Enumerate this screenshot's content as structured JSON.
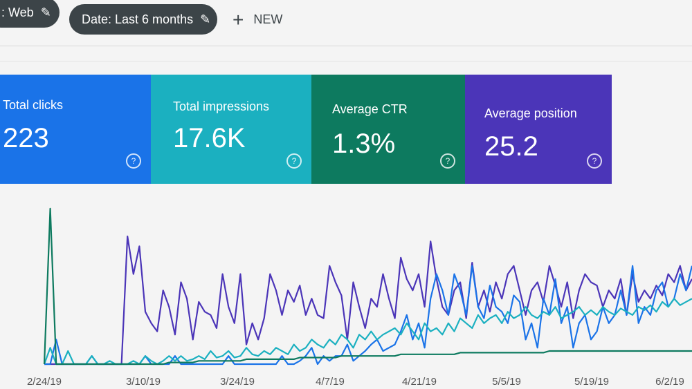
{
  "toolbar": {
    "chip_web": ": Web",
    "chip_date": "Date: Last 6 months",
    "new_label": "NEW"
  },
  "cards": [
    {
      "label": "Total clicks",
      "value": "223",
      "color": "#1a73e8"
    },
    {
      "label": "Total impressions",
      "value": "17.6K",
      "color": "#1bb0c0"
    },
    {
      "label": "Average CTR",
      "value": "1.3%",
      "color": "#0d7a5f"
    },
    {
      "label": "Average position",
      "value": "25.2",
      "color": "#4b35b8"
    }
  ],
  "chart_data": {
    "type": "line",
    "x_ticks": [
      "2/24/19",
      "3/10/19",
      "3/24/19",
      "4/7/19",
      "4/21/19",
      "5/5/19",
      "5/19/19",
      "6/2/19"
    ],
    "series": [
      {
        "color": "#4b35b8",
        "values": [
          0,
          0,
          0,
          0,
          0,
          0,
          0,
          0,
          0,
          0,
          0,
          0,
          0,
          0,
          0.78,
          0.55,
          0.72,
          0.32,
          0.25,
          0.2,
          0.45,
          0.35,
          0.18,
          0.5,
          0.4,
          0.15,
          0.38,
          0.32,
          0.3,
          0.22,
          0.55,
          0.35,
          0.25,
          0.55,
          0.12,
          0.25,
          0.15,
          0.28,
          0.55,
          0.45,
          0.3,
          0.45,
          0.38,
          0.48,
          0.3,
          0.4,
          0.3,
          0.28,
          0.6,
          0.5,
          0.42,
          0.15,
          0.5,
          0.35,
          0.22,
          0.4,
          0.35,
          0.55,
          0.4,
          0.28,
          0.65,
          0.52,
          0.45,
          0.55,
          0.35,
          0.75,
          0.52,
          0.35,
          0.3,
          0.45,
          0.5,
          0.28,
          0.62,
          0.35,
          0.45,
          0.32,
          0.5,
          0.4,
          0.55,
          0.6,
          0.45,
          0.3,
          0.45,
          0.5,
          0.38,
          0.6,
          0.48,
          0.35,
          0.5,
          0.28,
          0.45,
          0.55,
          0.5,
          0.48,
          0.35,
          0.45,
          0.4,
          0.52,
          0.3,
          0.55,
          0.38,
          0.45,
          0.4,
          0.48,
          0.42,
          0.55,
          0.5,
          0.6,
          0.45,
          0.52
        ]
      },
      {
        "color": "#1a73e8",
        "values": [
          0,
          0,
          0.15,
          0,
          0,
          0,
          0,
          0,
          0.05,
          0,
          0,
          0,
          0,
          0,
          0,
          0,
          0,
          0.05,
          0,
          0,
          0,
          0,
          0.05,
          0,
          0,
          0,
          0,
          0,
          0,
          0,
          0,
          0.05,
          0,
          0,
          0,
          0,
          0,
          0,
          0,
          0,
          0.05,
          0,
          0,
          0.02,
          0.05,
          0.1,
          0,
          0.05,
          0.02,
          0.05,
          0.05,
          0.12,
          0.02,
          0.05,
          0.08,
          0.12,
          0.15,
          0.08,
          0.1,
          0.12,
          0.2,
          0.3,
          0.15,
          0.25,
          0.1,
          0.4,
          0.55,
          0.45,
          0.3,
          0.55,
          0.45,
          0.3,
          0.6,
          0.35,
          0.28,
          0.48,
          0.35,
          0.32,
          0.25,
          0.42,
          0.38,
          0.15,
          0.25,
          0.1,
          0.4,
          0.3,
          0.52,
          0.25,
          0.35,
          0.1,
          0.25,
          0.3,
          0.15,
          0.2,
          0.35,
          0.25,
          0.3,
          0.45,
          0.3,
          0.6,
          0.25,
          0.35,
          0.3,
          0.45,
          0.5,
          0.35,
          0.4,
          0.55,
          0.45,
          0.6
        ]
      },
      {
        "color": "#1bb0c0",
        "values": [
          0,
          0.1,
          0,
          0,
          0.08,
          0,
          0,
          0,
          0.05,
          0,
          0,
          0.02,
          0,
          0,
          0,
          0.02,
          0,
          0.05,
          0.02,
          0,
          0.02,
          0.05,
          0.02,
          0.05,
          0.02,
          0.03,
          0.05,
          0.03,
          0.08,
          0.04,
          0.05,
          0.08,
          0.04,
          0.05,
          0.1,
          0.06,
          0.05,
          0.08,
          0.06,
          0.1,
          0.08,
          0.06,
          0.12,
          0.08,
          0.1,
          0.15,
          0.12,
          0.1,
          0.15,
          0.12,
          0.18,
          0.15,
          0.1,
          0.18,
          0.15,
          0.2,
          0.15,
          0.18,
          0.2,
          0.22,
          0.18,
          0.25,
          0.2,
          0.15,
          0.25,
          0.2,
          0.22,
          0.18,
          0.25,
          0.2,
          0.28,
          0.25,
          0.22,
          0.3,
          0.25,
          0.28,
          0.3,
          0.25,
          0.32,
          0.28,
          0.3,
          0.35,
          0.3,
          0.28,
          0.32,
          0.3,
          0.35,
          0.28,
          0.3,
          0.32,
          0.35,
          0.3,
          0.33,
          0.3,
          0.35,
          0.32,
          0.3,
          0.34,
          0.32,
          0.3,
          0.35,
          0.33,
          0.36,
          0.32,
          0.38,
          0.35,
          0.4,
          0.36,
          0.38,
          0.4
        ]
      },
      {
        "color": "#0d7a5f",
        "values": [
          0,
          0.95,
          0,
          0,
          0,
          0,
          0,
          0,
          0,
          0,
          0,
          0,
          0,
          0,
          0,
          0,
          0,
          0,
          0,
          0,
          0,
          0.01,
          0.01,
          0.01,
          0.01,
          0.01,
          0.02,
          0.02,
          0.02,
          0.02,
          0.02,
          0.02,
          0.02,
          0.02,
          0.03,
          0.03,
          0.03,
          0.03,
          0.03,
          0.03,
          0.03,
          0.03,
          0.03,
          0.04,
          0.04,
          0.04,
          0.04,
          0.04,
          0.04,
          0.04,
          0.05,
          0.05,
          0.05,
          0.05,
          0.05,
          0.05,
          0.05,
          0.05,
          0.05,
          0.05,
          0.06,
          0.06,
          0.06,
          0.06,
          0.06,
          0.06,
          0.06,
          0.06,
          0.06,
          0.06,
          0.07,
          0.07,
          0.07,
          0.07,
          0.07,
          0.07,
          0.07,
          0.07,
          0.07,
          0.07,
          0.07,
          0.07,
          0.07,
          0.07,
          0.07,
          0.08,
          0.08,
          0.08,
          0.08,
          0.08,
          0.08,
          0.08,
          0.08,
          0.08,
          0.08,
          0.08,
          0.08,
          0.08,
          0.08,
          0.08,
          0.08,
          0.08,
          0.08,
          0.08,
          0.08,
          0.08,
          0.08,
          0.08,
          0.08,
          0.08
        ]
      }
    ]
  }
}
